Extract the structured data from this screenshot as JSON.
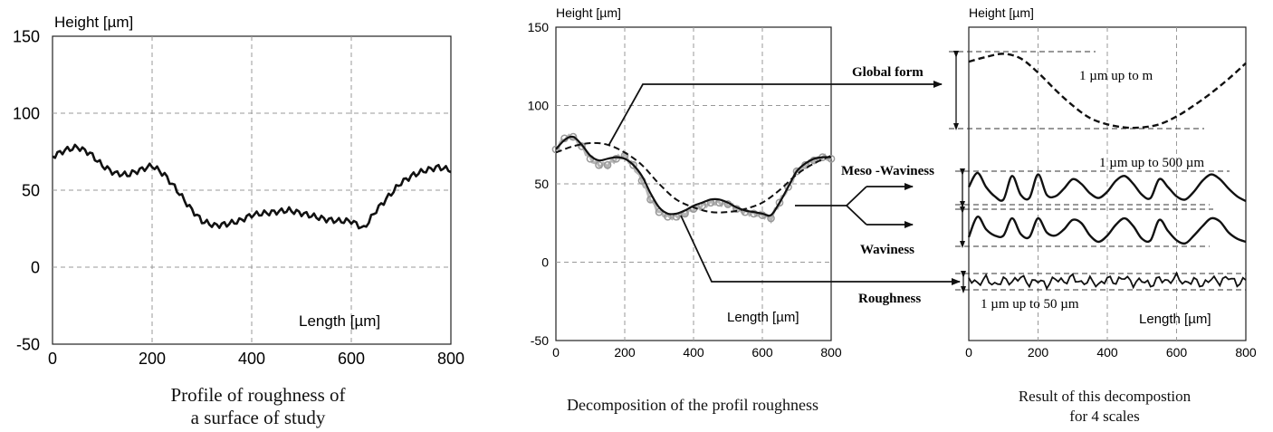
{
  "chart_data": [
    {
      "type": "line",
      "title": "",
      "ylabel": "Height [µm]",
      "xlabel": "Length [µm]",
      "xlim": [
        0,
        800
      ],
      "ylim": [
        -50,
        150
      ],
      "xticks": [
        "0",
        "200",
        "400",
        "600",
        "800"
      ],
      "yticks": [
        "150",
        "100",
        "50",
        "0",
        "-50"
      ],
      "grid": true,
      "caption": [
        "Profile of roughness of",
        "a surface of study"
      ],
      "series": [
        {
          "x": [
            0,
            25,
            50,
            75,
            100,
            125,
            150,
            175,
            200,
            225,
            250,
            275,
            300,
            325,
            350,
            375,
            400,
            425,
            450,
            475,
            500,
            525,
            550,
            575,
            600,
            625,
            650,
            675,
            700,
            725,
            750,
            775,
            800
          ],
          "values": [
            72,
            76,
            78,
            74,
            66,
            61,
            60,
            63,
            66,
            60,
            50,
            39,
            30,
            27,
            28,
            30,
            34,
            35,
            36,
            37,
            35,
            33,
            31,
            30,
            30,
            25,
            37,
            46,
            55,
            60,
            63,
            65,
            63
          ]
        }
      ]
    },
    {
      "type": "line",
      "title": "",
      "ylabel": "Height [µm]",
      "xlabel": "Length [µm]",
      "xlim": [
        0,
        800
      ],
      "ylim": [
        -50,
        150
      ],
      "xticks": [
        "0",
        "200",
        "400",
        "600",
        "800"
      ],
      "yticks": [
        "150",
        "100",
        "50",
        "0",
        "-50"
      ],
      "grid": true,
      "caption": [
        "Decomposition of the profil roughness"
      ],
      "series": [
        {
          "style": "dashed",
          "x": [
            0,
            50,
            100,
            150,
            200,
            250,
            300,
            350,
            400,
            450,
            500,
            550,
            600,
            650,
            700,
            750,
            800
          ],
          "values": [
            70,
            74,
            76,
            75,
            70,
            62,
            50,
            40,
            35,
            32,
            32,
            34,
            38,
            46,
            56,
            63,
            68
          ]
        },
        {
          "style": "solid",
          "x": [
            0,
            25,
            50,
            75,
            100,
            125,
            150,
            175,
            200,
            225,
            250,
            275,
            300,
            325,
            350,
            375,
            400,
            425,
            450,
            475,
            500,
            525,
            550,
            575,
            600,
            625,
            650,
            675,
            700,
            725,
            750,
            775,
            800
          ],
          "values": [
            72,
            78,
            80,
            75,
            68,
            65,
            66,
            67,
            66,
            62,
            55,
            44,
            35,
            31,
            31,
            33,
            36,
            38,
            40,
            40,
            38,
            35,
            33,
            32,
            31,
            30,
            38,
            48,
            58,
            63,
            66,
            67,
            67
          ]
        },
        {
          "style": "markers",
          "x": [
            0,
            25,
            50,
            75,
            100,
            125,
            150,
            175,
            200,
            225,
            250,
            275,
            300,
            325,
            350,
            375,
            400,
            425,
            450,
            475,
            500,
            525,
            550,
            575,
            600,
            625,
            650,
            675,
            700,
            725,
            750,
            775,
            800
          ],
          "values": [
            72,
            79,
            80,
            74,
            66,
            62,
            62,
            66,
            68,
            62,
            52,
            40,
            32,
            29,
            29,
            31,
            34,
            36,
            38,
            38,
            37,
            34,
            32,
            31,
            30,
            28,
            38,
            48,
            58,
            62,
            65,
            67,
            66
          ]
        }
      ],
      "annotations": [
        "Global form",
        "Meso -Waviness",
        "Waviness",
        "Roughness"
      ]
    },
    {
      "type": "line",
      "title": "",
      "ylabel": "Height [µm]",
      "xlabel": "Length [µm]",
      "xlim": [
        0,
        800
      ],
      "xticks": [
        "0",
        "200",
        "400",
        "600",
        "800"
      ],
      "grid": true,
      "caption": [
        "Result of this decompostion",
        "for 4 scales"
      ],
      "scale_labels": [
        "1 µm up to m",
        "1 µm up to 500 µm",
        "1 µm up to 50 µm"
      ],
      "series": [
        {
          "name": "Global form",
          "style": "dashed",
          "x": [
            0,
            50,
            100,
            150,
            200,
            250,
            300,
            350,
            400,
            450,
            500,
            550,
            600,
            650,
            700,
            750,
            800
          ],
          "values": [
            128,
            131,
            133,
            130,
            121,
            110,
            100,
            92,
            88,
            86,
            86,
            88,
            93,
            100,
            108,
            117,
            127
          ]
        },
        {
          "name": "Meso -Waviness",
          "style": "solid",
          "x": [
            0,
            25,
            50,
            75,
            100,
            125,
            150,
            175,
            200,
            225,
            250,
            275,
            300,
            325,
            350,
            375,
            400,
            425,
            450,
            475,
            500,
            525,
            550,
            575,
            600,
            625,
            650,
            675,
            700,
            725,
            750,
            775,
            800
          ],
          "values": [
            48,
            57,
            48,
            42,
            40,
            55,
            43,
            41,
            56,
            43,
            42,
            47,
            53,
            50,
            44,
            41,
            45,
            52,
            55,
            50,
            43,
            41,
            53,
            48,
            42,
            40,
            45,
            52,
            56,
            53,
            47,
            42,
            39
          ]
        },
        {
          "name": "Waviness",
          "style": "solid",
          "x": [
            0,
            25,
            50,
            75,
            100,
            125,
            150,
            175,
            200,
            225,
            250,
            275,
            300,
            325,
            350,
            375,
            400,
            425,
            450,
            475,
            500,
            525,
            550,
            575,
            600,
            625,
            650,
            675,
            700,
            725,
            750,
            775,
            800
          ],
          "values": [
            16,
            29,
            21,
            17,
            17,
            28,
            18,
            16,
            28,
            19,
            17,
            21,
            27,
            25,
            17,
            13,
            17,
            24,
            28,
            23,
            15,
            14,
            27,
            20,
            14,
            12,
            17,
            23,
            28,
            26,
            19,
            15,
            13
          ]
        },
        {
          "name": "Roughness",
          "style": "solid",
          "x": [
            0,
            25,
            50,
            75,
            100,
            125,
            150,
            175,
            200,
            225,
            250,
            275,
            300,
            325,
            350,
            375,
            400,
            425,
            450,
            475,
            500,
            525,
            550,
            575,
            600,
            625,
            650,
            675,
            700,
            725,
            750,
            775,
            800
          ],
          "values": [
            -10,
            -14,
            -10,
            -15,
            -11,
            -13,
            -9,
            -14,
            -11,
            -15,
            -10,
            -13,
            -9,
            -14,
            -11,
            -15,
            -10,
            -13,
            -9,
            -14,
            -11,
            -15,
            -10,
            -13,
            -9,
            -14,
            -11,
            -15,
            -10,
            -13,
            -9,
            -14,
            -11
          ]
        }
      ]
    }
  ]
}
